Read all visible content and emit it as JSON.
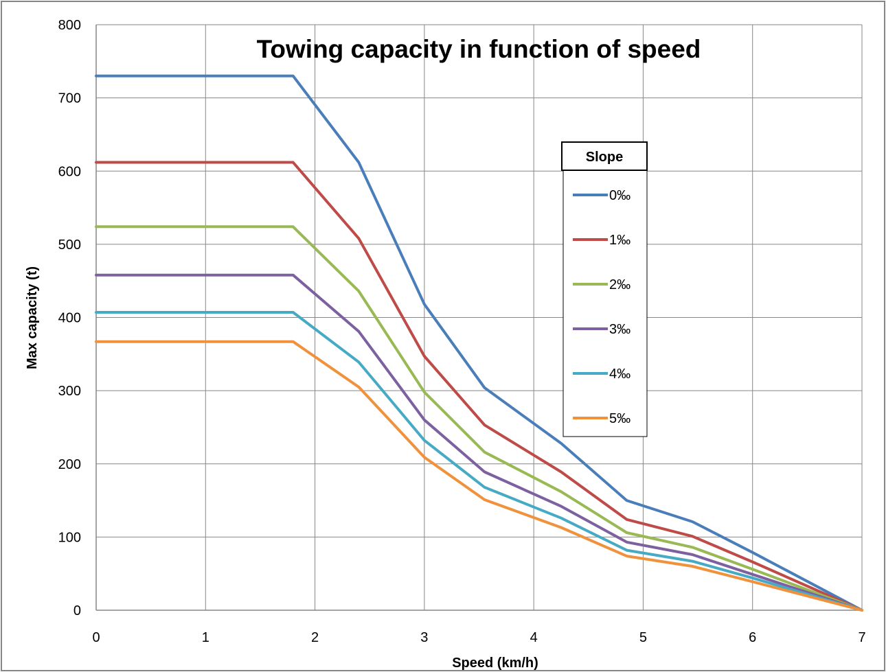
{
  "chart_data": {
    "type": "line",
    "title": "Towing capacity in function of speed",
    "xlabel": "Speed (km/h)",
    "ylabel": "Max capacity (t)",
    "xlim": [
      0,
      7
    ],
    "ylim": [
      0,
      800
    ],
    "xticks": [
      0,
      1,
      2,
      3,
      4,
      5,
      6,
      7
    ],
    "yticks": [
      0,
      100,
      200,
      300,
      400,
      500,
      600,
      700,
      800
    ],
    "grid": true,
    "legend": {
      "title": "Slope",
      "placement": "right"
    },
    "x": [
      0,
      1.8,
      2.4,
      3.0,
      3.55,
      4.25,
      4.85,
      5.45,
      6.0,
      7.0
    ],
    "series": [
      {
        "name": "0‰",
        "color": "#4a7ebb",
        "values": [
          730,
          730,
          612,
          418,
          304,
          228,
          150,
          121,
          79,
          0
        ]
      },
      {
        "name": "1‰",
        "color": "#be4b48",
        "values": [
          612,
          612,
          508,
          347,
          253,
          189,
          124,
          101,
          66,
          0
        ]
      },
      {
        "name": "2‰",
        "color": "#98b954",
        "values": [
          524,
          524,
          436,
          298,
          216,
          162,
          106,
          86,
          56,
          0
        ]
      },
      {
        "name": "3‰",
        "color": "#7d60a0",
        "values": [
          458,
          458,
          381,
          260,
          189,
          142,
          93,
          76,
          49,
          0
        ]
      },
      {
        "name": "4‰",
        "color": "#46aac5",
        "values": [
          407,
          407,
          339,
          232,
          168,
          126,
          82,
          67,
          44,
          0
        ]
      },
      {
        "name": "5‰",
        "color": "#f0913c",
        "values": [
          367,
          367,
          305,
          209,
          151,
          113,
          74,
          60,
          39,
          0
        ]
      }
    ]
  }
}
